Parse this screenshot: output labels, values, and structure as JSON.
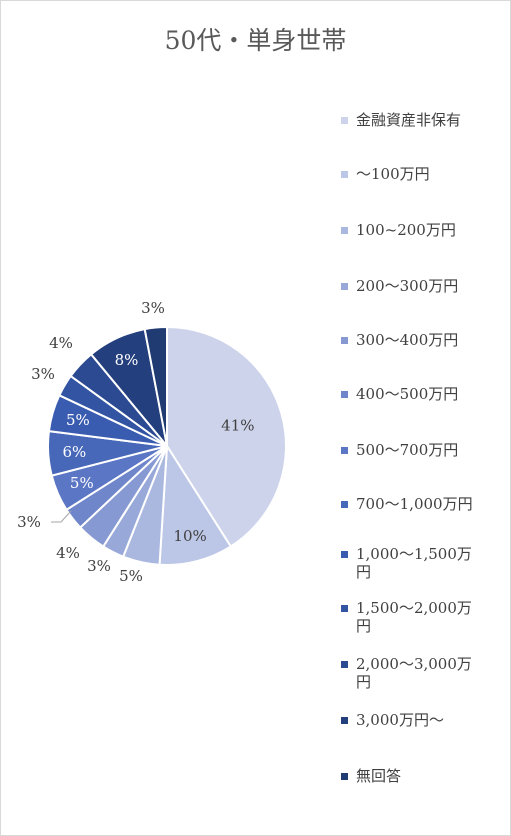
{
  "chart_data": {
    "type": "pie",
    "title": "50代・単身世帯",
    "categories": [
      "金融資産非保有",
      "～100万円",
      "100~200万円",
      "200～300万円",
      "300～400万円",
      "400～500万円",
      "500～700万円",
      "700～1,000万円",
      "1,000～1,500万円",
      "1,500～2,000万円",
      "2,000～3,000万円",
      "3,000万円～",
      "無回答"
    ],
    "legend_labels": [
      "金融資産非保有",
      "～100万円",
      "100~200万円",
      "200～300万円",
      "300～400万円",
      "400～500万円",
      "500～700万円",
      "700～1,000万円",
      "1,000～1,500万\n円",
      "1,500～2,000万\n円",
      "2,000～3,000万\n円",
      "3,000万円～",
      "無回答"
    ],
    "values": [
      41,
      10,
      5,
      3,
      4,
      3,
      5,
      6,
      5,
      3,
      4,
      8,
      3
    ],
    "data_labels": [
      "41%",
      "10%",
      "5%",
      "3%",
      "4%",
      "3%",
      "5%",
      "6%",
      "5%",
      "3%",
      "4%",
      "8%",
      "3%"
    ],
    "colors": [
      "#cdd3ea",
      "#bcc6e6",
      "#aab8e0",
      "#98a9d9",
      "#8699d2",
      "#6f86ca",
      "#5b76c4",
      "#4767b8",
      "#3a5cb0",
      "#3254a3",
      "#2b4a92",
      "#243f7e",
      "#203a72"
    ],
    "legend_position": "right"
  }
}
